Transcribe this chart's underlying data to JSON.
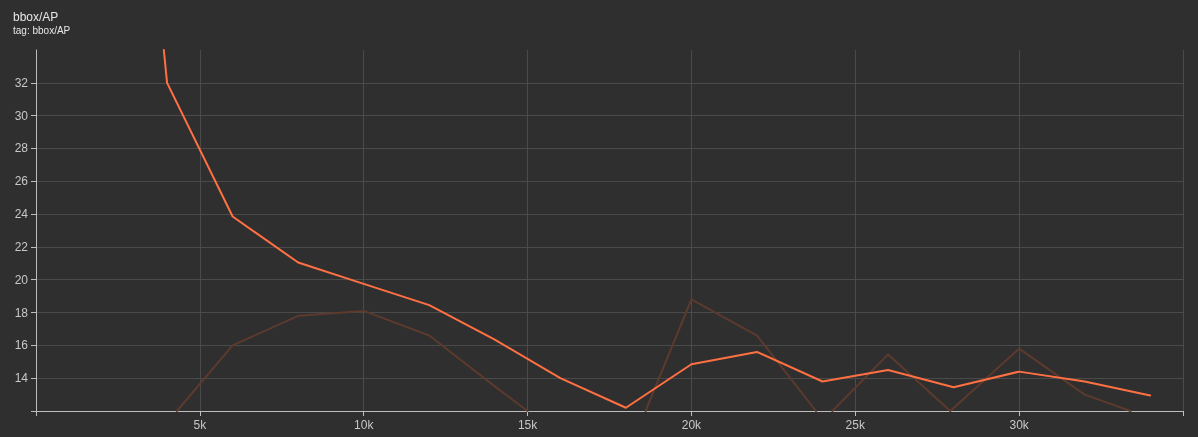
{
  "chart_data": {
    "type": "line",
    "title": "bbox/AP",
    "subtitle": "tag: bbox/AP",
    "series": [
      {
        "color": "#5c3a2e",
        "x": [
          4300,
          6000,
          8000,
          10000,
          12000,
          14000,
          15000,
          16000,
          18600,
          20000,
          22000,
          23800,
          24000,
          24300,
          26000,
          27900,
          30000,
          32000,
          33400
        ],
        "values": [
          12,
          16.0,
          17.8,
          18.1,
          16.6,
          13.5,
          12,
          null,
          12,
          18.8,
          16.6,
          12,
          null,
          12,
          15.45,
          12,
          15.8,
          13.0,
          12
        ]
      },
      {
        "color": "#ff7043",
        "x": [
          3900,
          4000,
          6000,
          8000,
          10000,
          12000,
          14000,
          16000,
          18000,
          20000,
          22000,
          24000,
          26000,
          28000,
          30000,
          32000,
          34000
        ],
        "values": [
          34,
          32,
          23.85,
          21.05,
          19.75,
          18.45,
          16.35,
          14.0,
          12.2,
          14.85,
          15.6,
          13.8,
          14.5,
          13.45,
          14.4,
          13.8,
          12.95
        ]
      }
    ],
    "xlim": [
      0,
      35000
    ],
    "xticks": [
      {
        "value": 0,
        "label": null
      },
      {
        "value": 5000,
        "label": "5k"
      },
      {
        "value": 10000,
        "label": "10k"
      },
      {
        "value": 15000,
        "label": "15k"
      },
      {
        "value": 20000,
        "label": "20k"
      },
      {
        "value": 25000,
        "label": "25k"
      },
      {
        "value": 30000,
        "label": "30k"
      },
      {
        "value": 35000,
        "label": null
      }
    ],
    "ylim": [
      12,
      34
    ],
    "yticks": [
      {
        "value": 12,
        "label": null
      },
      14,
      16,
      18,
      20,
      22,
      24,
      26,
      28,
      30,
      32
    ],
    "grid": true,
    "marker": "none",
    "line_style": "solid"
  }
}
